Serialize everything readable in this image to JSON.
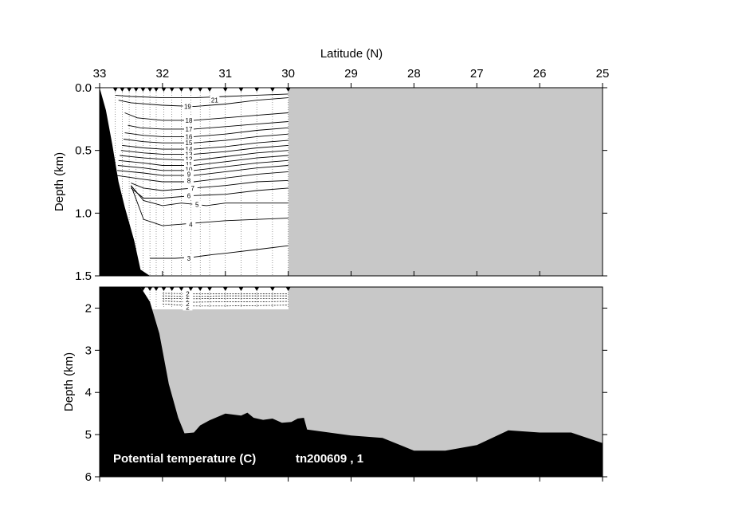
{
  "chart_data": {
    "type": "contour-section",
    "title": "Potential temperature (C)",
    "cruise": "tn200609 , 1",
    "xlabel": "Latitude (N)",
    "ylabel_upper": "Depth (km)",
    "ylabel_lower": "Depth (km)",
    "x_range": [
      33,
      25
    ],
    "x_ticks": [
      "33",
      "32",
      "31",
      "30",
      "29",
      "28",
      "27",
      "26",
      "25"
    ],
    "upper_depth_range": [
      0.0,
      1.5
    ],
    "upper_ticks": [
      "0.0",
      "0.5",
      "1.0",
      "1.5"
    ],
    "lower_depth_range": [
      1.5,
      6.0
    ],
    "lower_ticks": [
      "2",
      "3",
      "4",
      "5",
      "6"
    ],
    "colors": {
      "no_data": "#c8c8c8",
      "bathymetry": "#000000",
      "contour": "#000000",
      "station": "#000000"
    },
    "stations_lat": [
      32.75,
      32.64,
      32.53,
      32.42,
      32.31,
      32.2,
      32.1,
      31.98,
      31.85,
      31.7,
      31.55,
      31.4,
      31.25,
      31.0,
      30.75,
      30.5,
      30.25,
      30.0
    ],
    "bathymetry": [
      {
        "lat": 33.0,
        "depth": 0.0
      },
      {
        "lat": 32.9,
        "depth": 0.18
      },
      {
        "lat": 32.8,
        "depth": 0.45
      },
      {
        "lat": 32.7,
        "depth": 0.75
      },
      {
        "lat": 32.6,
        "depth": 0.95
      },
      {
        "lat": 32.45,
        "depth": 1.22
      },
      {
        "lat": 32.35,
        "depth": 1.45
      },
      {
        "lat": 32.2,
        "depth": 1.85
      },
      {
        "lat": 32.05,
        "depth": 2.6
      },
      {
        "lat": 31.9,
        "depth": 3.8
      },
      {
        "lat": 31.75,
        "depth": 4.6
      },
      {
        "lat": 31.65,
        "depth": 4.97
      },
      {
        "lat": 31.5,
        "depth": 4.95
      },
      {
        "lat": 31.4,
        "depth": 4.78
      },
      {
        "lat": 31.25,
        "depth": 4.66
      },
      {
        "lat": 31.0,
        "depth": 4.5
      },
      {
        "lat": 30.75,
        "depth": 4.55
      },
      {
        "lat": 30.65,
        "depth": 4.48
      },
      {
        "lat": 30.55,
        "depth": 4.6
      },
      {
        "lat": 30.4,
        "depth": 4.65
      },
      {
        "lat": 30.25,
        "depth": 4.62
      },
      {
        "lat": 30.1,
        "depth": 4.72
      },
      {
        "lat": 29.95,
        "depth": 4.7
      },
      {
        "lat": 29.85,
        "depth": 4.62
      },
      {
        "lat": 29.75,
        "depth": 4.6
      },
      {
        "lat": 29.7,
        "depth": 4.88
      },
      {
        "lat": 29.0,
        "depth": 5.02
      },
      {
        "lat": 28.5,
        "depth": 5.08
      },
      {
        "lat": 28.0,
        "depth": 5.38
      },
      {
        "lat": 27.5,
        "depth": 5.38
      },
      {
        "lat": 27.0,
        "depth": 5.25
      },
      {
        "lat": 26.5,
        "depth": 4.9
      },
      {
        "lat": 26.0,
        "depth": 4.95
      },
      {
        "lat": 25.5,
        "depth": 4.95
      },
      {
        "lat": 25.0,
        "depth": 5.2
      }
    ],
    "contours_upper": [
      {
        "level": "21",
        "label_lat": 31.17,
        "label_depth": 0.1,
        "points": [
          [
            32.75,
            0.06
          ],
          [
            32.5,
            0.07
          ],
          [
            32.0,
            0.08
          ],
          [
            31.5,
            0.08
          ],
          [
            31.0,
            0.07
          ],
          [
            30.5,
            0.06
          ],
          [
            30.0,
            0.05
          ]
        ]
      },
      {
        "level": "19",
        "label_lat": 31.6,
        "label_depth": 0.15,
        "points": [
          [
            32.7,
            0.1
          ],
          [
            32.5,
            0.12
          ],
          [
            32.0,
            0.14
          ],
          [
            31.5,
            0.15
          ],
          [
            31.0,
            0.13
          ],
          [
            30.5,
            0.1
          ],
          [
            30.0,
            0.08
          ]
        ]
      },
      {
        "level": "18",
        "label_lat": 31.58,
        "label_depth": 0.26,
        "points": [
          [
            32.6,
            0.2
          ],
          [
            32.4,
            0.24
          ],
          [
            32.0,
            0.26
          ],
          [
            31.5,
            0.26
          ],
          [
            31.0,
            0.24
          ],
          [
            30.5,
            0.22
          ],
          [
            30.0,
            0.2
          ]
        ]
      },
      {
        "level": "17",
        "label_lat": 31.58,
        "label_depth": 0.33,
        "points": [
          [
            32.55,
            0.3
          ],
          [
            32.35,
            0.32
          ],
          [
            32.0,
            0.33
          ],
          [
            31.5,
            0.33
          ],
          [
            31.0,
            0.31
          ],
          [
            30.5,
            0.29
          ],
          [
            30.0,
            0.27
          ]
        ]
      },
      {
        "level": "16",
        "label_lat": 31.58,
        "label_depth": 0.39,
        "points": [
          [
            32.6,
            0.36
          ],
          [
            32.3,
            0.38
          ],
          [
            32.0,
            0.39
          ],
          [
            31.5,
            0.39
          ],
          [
            31.0,
            0.37
          ],
          [
            30.5,
            0.34
          ],
          [
            30.0,
            0.32
          ]
        ]
      },
      {
        "level": "15",
        "label_lat": 31.58,
        "label_depth": 0.44,
        "points": [
          [
            32.62,
            0.41
          ],
          [
            32.3,
            0.43
          ],
          [
            32.0,
            0.44
          ],
          [
            31.5,
            0.44
          ],
          [
            31.0,
            0.42
          ],
          [
            30.5,
            0.39
          ],
          [
            30.0,
            0.37
          ]
        ]
      },
      {
        "level": "14",
        "label_lat": 31.58,
        "label_depth": 0.49,
        "points": [
          [
            32.64,
            0.46
          ],
          [
            32.3,
            0.48
          ],
          [
            32.0,
            0.49
          ],
          [
            31.5,
            0.49
          ],
          [
            31.0,
            0.47
          ],
          [
            30.5,
            0.44
          ],
          [
            30.0,
            0.42
          ]
        ]
      },
      {
        "level": "13",
        "label_lat": 31.58,
        "label_depth": 0.53,
        "points": [
          [
            32.66,
            0.5
          ],
          [
            32.3,
            0.52
          ],
          [
            32.0,
            0.53
          ],
          [
            31.5,
            0.53
          ],
          [
            31.0,
            0.51
          ],
          [
            30.5,
            0.48
          ],
          [
            30.0,
            0.46
          ]
        ]
      },
      {
        "level": "12",
        "label_lat": 31.58,
        "label_depth": 0.57,
        "points": [
          [
            32.68,
            0.54
          ],
          [
            32.3,
            0.56
          ],
          [
            32.0,
            0.57
          ],
          [
            31.5,
            0.58
          ],
          [
            31.0,
            0.55
          ],
          [
            30.5,
            0.52
          ],
          [
            30.0,
            0.5
          ]
        ]
      },
      {
        "level": "11",
        "label_lat": 31.58,
        "label_depth": 0.61,
        "points": [
          [
            32.7,
            0.58
          ],
          [
            32.3,
            0.6
          ],
          [
            32.0,
            0.62
          ],
          [
            31.5,
            0.62
          ],
          [
            31.0,
            0.59
          ],
          [
            30.5,
            0.56
          ],
          [
            30.0,
            0.54
          ]
        ]
      },
      {
        "level": "10",
        "label_lat": 31.58,
        "label_depth": 0.65,
        "points": [
          [
            32.71,
            0.62
          ],
          [
            32.3,
            0.64
          ],
          [
            32.0,
            0.66
          ],
          [
            31.5,
            0.66
          ],
          [
            31.0,
            0.63
          ],
          [
            30.5,
            0.6
          ],
          [
            30.0,
            0.58
          ]
        ]
      },
      {
        "level": "9",
        "label_lat": 31.58,
        "label_depth": 0.69,
        "points": [
          [
            32.72,
            0.66
          ],
          [
            32.3,
            0.68
          ],
          [
            32.0,
            0.7
          ],
          [
            31.5,
            0.7
          ],
          [
            31.0,
            0.67
          ],
          [
            30.5,
            0.64
          ],
          [
            30.0,
            0.62
          ]
        ]
      },
      {
        "level": "8",
        "label_lat": 31.58,
        "label_depth": 0.74,
        "points": [
          [
            32.73,
            0.7
          ],
          [
            32.3,
            0.73
          ],
          [
            32.0,
            0.75
          ],
          [
            31.5,
            0.75
          ],
          [
            31.0,
            0.72
          ],
          [
            30.5,
            0.69
          ],
          [
            30.0,
            0.67
          ]
        ]
      },
      {
        "level": "7",
        "label_lat": 31.52,
        "label_depth": 0.8,
        "points": [
          [
            32.5,
            0.76
          ],
          [
            32.3,
            0.8
          ],
          [
            32.0,
            0.82
          ],
          [
            31.5,
            0.8
          ],
          [
            31.0,
            0.78
          ],
          [
            30.5,
            0.75
          ],
          [
            30.0,
            0.74
          ]
        ]
      },
      {
        "level": "6",
        "label_lat": 31.58,
        "label_depth": 0.86,
        "points": [
          [
            32.5,
            0.8
          ],
          [
            32.3,
            0.88
          ],
          [
            32.0,
            0.88
          ],
          [
            31.5,
            0.86
          ],
          [
            31.0,
            0.85
          ],
          [
            30.5,
            0.82
          ],
          [
            30.0,
            0.8
          ]
        ]
      },
      {
        "level": "5",
        "label_lat": 31.45,
        "label_depth": 0.93,
        "points": [
          [
            32.5,
            0.78
          ],
          [
            32.3,
            0.9
          ],
          [
            32.0,
            0.94
          ],
          [
            31.7,
            0.92
          ],
          [
            31.3,
            0.94
          ],
          [
            31.0,
            0.92
          ],
          [
            30.5,
            0.92
          ],
          [
            30.0,
            0.92
          ]
        ]
      },
      {
        "level": "4",
        "label_lat": 31.55,
        "label_depth": 1.09,
        "points": [
          [
            32.5,
            0.78
          ],
          [
            32.3,
            1.05
          ],
          [
            32.0,
            1.1
          ],
          [
            31.5,
            1.08
          ],
          [
            31.0,
            1.06
          ],
          [
            30.5,
            1.05
          ],
          [
            30.0,
            1.04
          ]
        ]
      },
      {
        "level": "3",
        "label_lat": 31.58,
        "label_depth": 1.36,
        "points": [
          [
            32.2,
            1.36
          ],
          [
            31.8,
            1.36
          ],
          [
            31.5,
            1.35
          ],
          [
            31.2,
            1.33
          ],
          [
            31.0,
            1.32
          ],
          [
            30.5,
            1.29
          ],
          [
            30.0,
            1.26
          ]
        ]
      }
    ],
    "contours_lower": [
      {
        "level": "2",
        "label_lat": 31.6,
        "label_depth": 1.98,
        "points": [
          [
            32.0,
            1.9
          ],
          [
            31.5,
            1.95
          ],
          [
            31.0,
            1.95
          ],
          [
            30.5,
            1.94
          ],
          [
            30.0,
            1.93
          ]
        ]
      },
      {
        "level": "2",
        "label_lat": 31.6,
        "label_depth": 1.9,
        "points": [
          [
            32.0,
            1.83
          ],
          [
            31.5,
            1.86
          ],
          [
            31.0,
            1.85
          ],
          [
            30.5,
            1.85
          ],
          [
            30.0,
            1.84
          ]
        ]
      },
      {
        "level": "2",
        "label_lat": 31.6,
        "label_depth": 1.8,
        "points": [
          [
            32.0,
            1.77
          ],
          [
            31.5,
            1.78
          ],
          [
            31.0,
            1.77
          ],
          [
            30.5,
            1.77
          ],
          [
            30.0,
            1.77
          ]
        ]
      },
      {
        "level": "2",
        "label_lat": 31.6,
        "label_depth": 1.73,
        "points": [
          [
            32.0,
            1.71
          ],
          [
            31.5,
            1.72
          ],
          [
            31.0,
            1.71
          ],
          [
            30.5,
            1.71
          ],
          [
            30.0,
            1.71
          ]
        ]
      },
      {
        "level": "2",
        "label_lat": 31.6,
        "label_depth": 1.66,
        "points": [
          [
            32.0,
            1.65
          ],
          [
            31.5,
            1.66
          ],
          [
            31.0,
            1.66
          ],
          [
            30.5,
            1.66
          ],
          [
            30.0,
            1.66
          ]
        ]
      }
    ]
  }
}
